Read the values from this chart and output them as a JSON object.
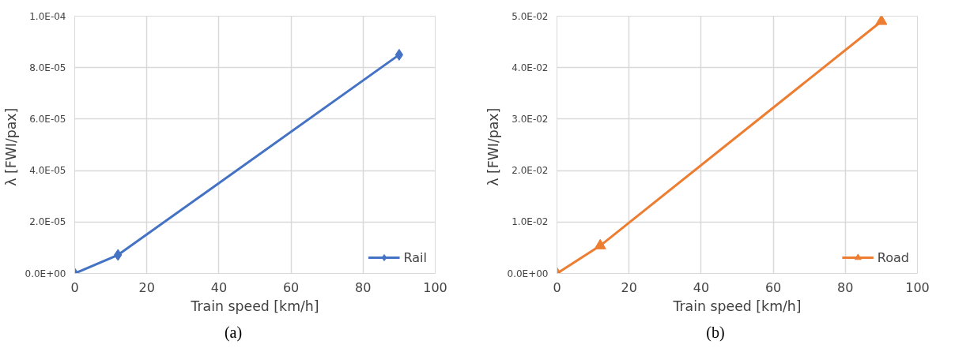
{
  "chart_data": [
    {
      "type": "line",
      "xlabel": "Train speed [km/h]",
      "ylabel": "λ  [FWI/pax]",
      "x": [
        0,
        12,
        90
      ],
      "series": [
        {
          "name": "Rail",
          "color": "#4472c4",
          "values": [
            0,
            7.2e-06,
            8.5e-05
          ]
        }
      ],
      "xlim": [
        0,
        100
      ],
      "xticks": [
        0,
        20,
        40,
        60,
        80,
        100
      ],
      "ylim": [
        0,
        0.0001
      ],
      "yticks": [
        {
          "value": 0,
          "label": "0.0E+00"
        },
        {
          "value": 2e-05,
          "label": "2.0E-05"
        },
        {
          "value": 4e-05,
          "label": "4.0E-05"
        },
        {
          "value": 6e-05,
          "label": "6.0E-05"
        },
        {
          "value": 8e-05,
          "label": "8.0E-05"
        },
        {
          "value": 0.0001,
          "label": "1.0E-04"
        }
      ],
      "grid": true,
      "legend": "bottom right",
      "marker": "diamond",
      "line_style": "solid",
      "annotations": [
        "(a)"
      ]
    },
    {
      "type": "line",
      "xlabel": "Train speed [km/h]",
      "ylabel": "λ  [FWI/pax]",
      "x": [
        0,
        12,
        90
      ],
      "series": [
        {
          "name": "Road",
          "color": "#ed7d31",
          "values": [
            0,
            0.0054,
            0.049
          ]
        }
      ],
      "xlim": [
        0,
        100
      ],
      "xticks": [
        0,
        20,
        40,
        60,
        80,
        100
      ],
      "ylim": [
        0,
        0.05
      ],
      "yticks": [
        {
          "value": 0,
          "label": "0.0E+00"
        },
        {
          "value": 0.01,
          "label": "1.0E-02"
        },
        {
          "value": 0.02,
          "label": "2.0E-02"
        },
        {
          "value": 0.03,
          "label": "3.0E-02"
        },
        {
          "value": 0.04,
          "label": "4.0E-02"
        },
        {
          "value": 0.05,
          "label": "5.0E-02"
        }
      ],
      "grid": true,
      "legend": "bottom right",
      "marker": "triangle",
      "line_style": "solid",
      "annotations": [
        "(b)"
      ]
    }
  ]
}
